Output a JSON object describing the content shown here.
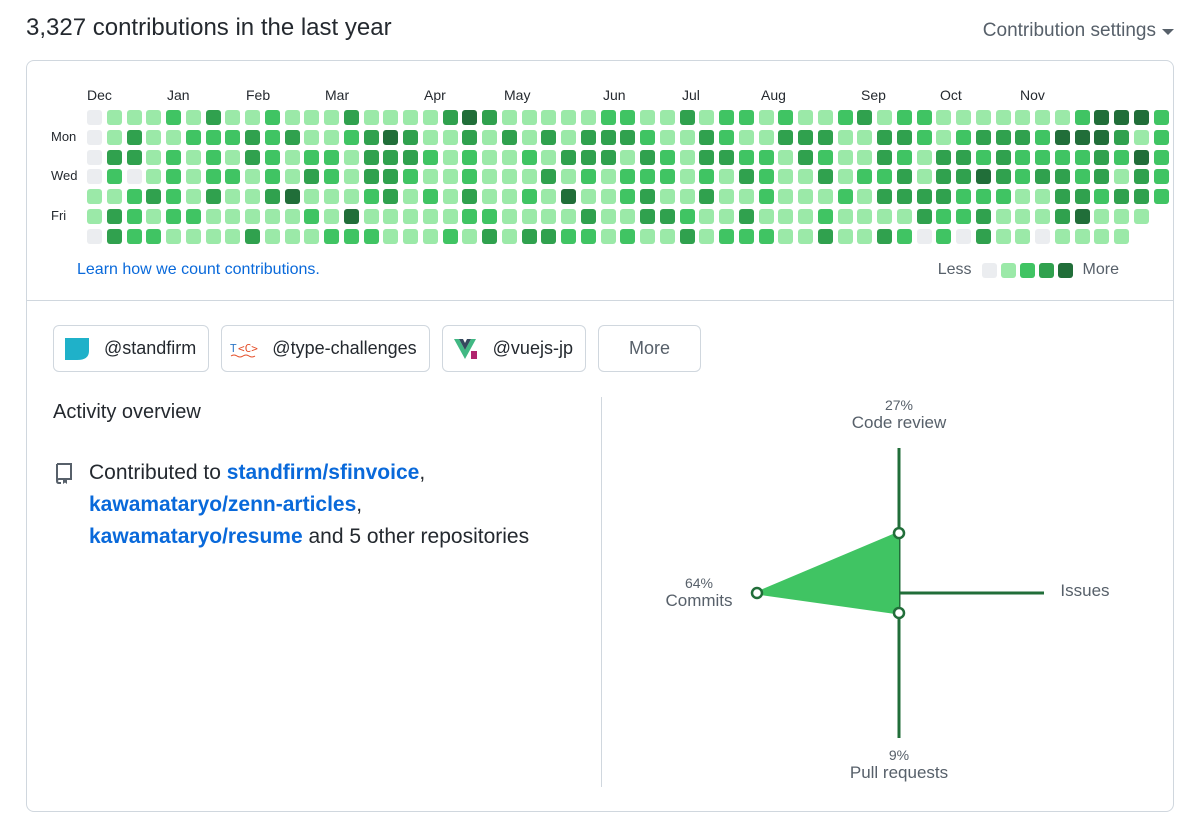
{
  "header": {
    "title": "3,327 contributions in the last year",
    "settings_label": "Contribution settings"
  },
  "calendar": {
    "months": [
      "Dec",
      "Jan",
      "Feb",
      "Mar",
      "Apr",
      "May",
      "Jun",
      "Jul",
      "Aug",
      "Sep",
      "Oct",
      "Nov"
    ],
    "days": [
      "Mon",
      "Wed",
      "Fri"
    ],
    "learn_link": "Learn how we count contributions.",
    "legend_less": "Less",
    "legend_more": "More",
    "colors": [
      "#ebedf0",
      "#9be9a8",
      "#40c463",
      "#30a14e",
      "#216e39"
    ],
    "weeks": [
      [
        0,
        0,
        0,
        0,
        1,
        1,
        0
      ],
      [
        1,
        1,
        3,
        2,
        1,
        3,
        3
      ],
      [
        1,
        3,
        3,
        0,
        2,
        2,
        2
      ],
      [
        1,
        1,
        1,
        1,
        3,
        1,
        2
      ],
      [
        2,
        1,
        2,
        2,
        2,
        2,
        1
      ],
      [
        1,
        2,
        1,
        1,
        1,
        2,
        1
      ],
      [
        3,
        2,
        2,
        2,
        3,
        1,
        1
      ],
      [
        1,
        2,
        1,
        2,
        1,
        1,
        1
      ],
      [
        1,
        3,
        3,
        1,
        1,
        1,
        3
      ],
      [
        2,
        2,
        2,
        2,
        3,
        1,
        1
      ],
      [
        1,
        3,
        1,
        1,
        4,
        1,
        1
      ],
      [
        1,
        1,
        2,
        3,
        1,
        2,
        1
      ],
      [
        1,
        1,
        2,
        2,
        1,
        1,
        2
      ],
      [
        3,
        2,
        1,
        1,
        1,
        4,
        2
      ],
      [
        1,
        3,
        3,
        3,
        2,
        1,
        2
      ],
      [
        1,
        4,
        3,
        3,
        3,
        1,
        1
      ],
      [
        1,
        3,
        3,
        2,
        1,
        1,
        1
      ],
      [
        1,
        1,
        2,
        1,
        2,
        1,
        1
      ],
      [
        3,
        1,
        1,
        1,
        1,
        1,
        2
      ],
      [
        4,
        3,
        2,
        2,
        3,
        2,
        1
      ],
      [
        3,
        1,
        1,
        1,
        1,
        2,
        3
      ],
      [
        1,
        3,
        1,
        1,
        1,
        1,
        1
      ],
      [
        1,
        1,
        2,
        1,
        2,
        1,
        3
      ],
      [
        1,
        3,
        1,
        3,
        1,
        1,
        3
      ],
      [
        1,
        1,
        3,
        1,
        4,
        1,
        2
      ],
      [
        1,
        3,
        3,
        2,
        1,
        3,
        2
      ],
      [
        2,
        3,
        3,
        1,
        1,
        1,
        1
      ],
      [
        2,
        3,
        1,
        2,
        2,
        1,
        2
      ],
      [
        1,
        2,
        3,
        2,
        3,
        3,
        1
      ],
      [
        1,
        1,
        2,
        2,
        1,
        3,
        1
      ],
      [
        3,
        1,
        1,
        1,
        1,
        2,
        3
      ],
      [
        1,
        3,
        3,
        2,
        3,
        1,
        1
      ],
      [
        2,
        2,
        3,
        1,
        1,
        1,
        2
      ],
      [
        2,
        1,
        2,
        3,
        1,
        3,
        2
      ],
      [
        1,
        1,
        2,
        2,
        2,
        1,
        2
      ],
      [
        2,
        3,
        1,
        1,
        1,
        1,
        1
      ],
      [
        1,
        3,
        3,
        1,
        1,
        1,
        1
      ],
      [
        1,
        3,
        2,
        3,
        1,
        2,
        3
      ],
      [
        2,
        1,
        1,
        1,
        2,
        1,
        1
      ],
      [
        3,
        1,
        1,
        2,
        1,
        1,
        1
      ],
      [
        1,
        3,
        3,
        2,
        3,
        1,
        3
      ],
      [
        2,
        3,
        2,
        3,
        3,
        1,
        2
      ],
      [
        2,
        2,
        1,
        1,
        3,
        3,
        0
      ],
      [
        1,
        1,
        3,
        3,
        3,
        2,
        2
      ],
      [
        1,
        2,
        3,
        3,
        2,
        2,
        0
      ],
      [
        1,
        3,
        2,
        4,
        2,
        3,
        3
      ],
      [
        1,
        3,
        3,
        3,
        2,
        1,
        1
      ],
      [
        1,
        3,
        2,
        2,
        1,
        1,
        1
      ],
      [
        1,
        2,
        2,
        3,
        1,
        1,
        0
      ],
      [
        1,
        4,
        2,
        3,
        3,
        3,
        1
      ],
      [
        2,
        4,
        2,
        2,
        3,
        4,
        1
      ],
      [
        4,
        4,
        3,
        3,
        2,
        1,
        1
      ],
      [
        4,
        3,
        2,
        1,
        3,
        1,
        1
      ],
      [
        4,
        1,
        4,
        3,
        3,
        1
      ],
      [
        2,
        2,
        2,
        2,
        2
      ]
    ]
  },
  "orgs": [
    {
      "name": "@standfirm",
      "logo": "standfirm-logo"
    },
    {
      "name": "@type-challenges",
      "logo": "type-challenges-logo"
    },
    {
      "name": "@vuejs-jp",
      "logo": "vuejs-jp-logo"
    }
  ],
  "orgs_more": "More",
  "activity": {
    "title": "Activity overview",
    "prefix": "Contributed to",
    "repos": [
      "standfirm/sfinvoice",
      "kawamataryo/zenn-articles",
      "kawamataryo/resume"
    ],
    "sep1": ",",
    "sep2": ",",
    "suffix": "and 5 other repositories"
  },
  "radar": {
    "code_review": {
      "label": "Code review",
      "pct": "27%",
      "value": 27
    },
    "issues": {
      "label": "Issues",
      "pct": "",
      "value": 0
    },
    "pull_requests": {
      "label": "Pull requests",
      "pct": "9%",
      "value": 9
    },
    "commits": {
      "label": "Commits",
      "pct": "64%",
      "value": 64
    },
    "fill": "#40c463",
    "axis": "#216e39"
  }
}
